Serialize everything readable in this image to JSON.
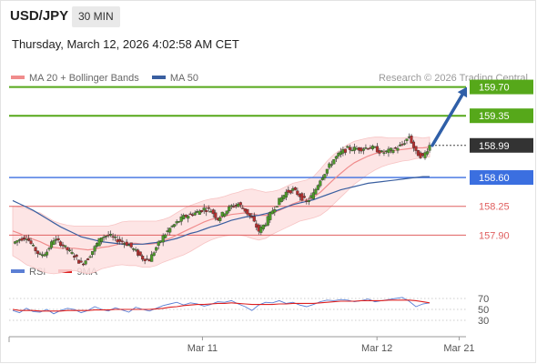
{
  "header": {
    "symbol": "USD/JPY",
    "timeframe": "30 MIN",
    "timestamp": "Thursday, March 12, 2026 4:02:58 AM CET"
  },
  "legend": {
    "ma20_label": "MA 20 + Bollinger Bands",
    "ma50_label": "MA 50",
    "credit": "Research © 2026 Trading Central",
    "ma20_color": "#f08c8c",
    "ma50_color": "#3a5fa0"
  },
  "rsi_legend": {
    "rsi_label": "RSI",
    "ma_label": "9MA",
    "rsi_color": "#5b7fd4",
    "ma_color": "#dd2020"
  },
  "chart_data": {
    "type": "candlestick",
    "price_range": [
      157.55,
      159.85
    ],
    "levels": [
      {
        "value": 159.7,
        "label": "159.70",
        "kind": "resistance",
        "color": "#56a81a"
      },
      {
        "value": 159.35,
        "label": "159.35",
        "kind": "resistance",
        "color": "#56a81a"
      },
      {
        "value": 158.99,
        "label": "158.99",
        "kind": "last",
        "color": "#333333"
      },
      {
        "value": 158.6,
        "label": "158.60",
        "kind": "pivot",
        "color": "#3b6fe0"
      },
      {
        "value": 158.25,
        "label": "158.25",
        "kind": "support",
        "color": "#e06060"
      },
      {
        "value": 157.9,
        "label": "157.90",
        "kind": "support",
        "color": "#e06060"
      }
    ],
    "arrow": {
      "from": 158.99,
      "to": 159.7,
      "color": "#2f5fa8"
    },
    "price_path": [
      157.8,
      157.85,
      157.88,
      157.75,
      157.65,
      157.7,
      157.85,
      157.8,
      157.72,
      157.65,
      157.55,
      157.62,
      157.75,
      157.88,
      157.9,
      157.85,
      157.82,
      157.78,
      157.7,
      157.62,
      157.6,
      157.75,
      157.88,
      157.98,
      158.05,
      158.12,
      158.15,
      158.18,
      158.22,
      158.2,
      158.1,
      158.18,
      158.25,
      158.28,
      158.2,
      158.1,
      157.95,
      158.05,
      158.2,
      158.32,
      158.42,
      158.45,
      158.38,
      158.3,
      158.4,
      158.58,
      158.7,
      158.82,
      158.9,
      158.95,
      158.95,
      158.95,
      158.97,
      158.95,
      158.9,
      158.92,
      158.95,
      159.0,
      159.1,
      158.9,
      158.85,
      158.99
    ],
    "ma20": [
      157.95,
      157.92,
      157.88,
      157.85,
      157.82,
      157.78,
      157.75,
      157.74,
      157.74,
      157.74,
      157.73,
      157.72,
      157.73,
      157.75,
      157.76,
      157.78,
      157.8,
      157.8,
      157.8,
      157.79,
      157.79,
      157.8,
      157.83,
      157.86,
      157.9,
      157.94,
      157.98,
      158.02,
      158.06,
      158.09,
      158.11,
      158.13,
      158.15,
      158.16,
      158.17,
      158.16,
      158.14,
      158.14,
      158.17,
      158.2,
      158.24,
      158.28,
      158.31,
      158.33,
      158.36,
      158.42,
      158.5,
      158.58,
      158.65,
      158.72,
      158.78,
      158.82,
      158.86,
      158.89,
      158.91,
      158.92,
      158.93,
      158.94,
      158.95,
      158.96,
      158.96,
      158.97
    ],
    "ma50": [
      158.32,
      158.28,
      158.24,
      158.2,
      158.15,
      158.1,
      158.05,
      158.0,
      157.96,
      157.92,
      157.88,
      157.86,
      157.84,
      157.82,
      157.81,
      157.8,
      157.79,
      157.79,
      157.79,
      157.79,
      157.8,
      157.81,
      157.82,
      157.84,
      157.86,
      157.89,
      157.92,
      157.94,
      157.97,
      158.0,
      158.02,
      158.05,
      158.08,
      158.1,
      158.12,
      158.13,
      158.14,
      158.16,
      158.18,
      158.21,
      158.24,
      158.27,
      158.29,
      158.31,
      158.33,
      158.36,
      158.39,
      158.42,
      158.45,
      158.47,
      158.49,
      158.51,
      158.53,
      158.54,
      158.55,
      158.56,
      158.57,
      158.58,
      158.59,
      158.6,
      158.61,
      158.61
    ],
    "bb_width": [
      0.3,
      0.32,
      0.34,
      0.34,
      0.35,
      0.34,
      0.32,
      0.3,
      0.28,
      0.27,
      0.28,
      0.29,
      0.28,
      0.26,
      0.25,
      0.25,
      0.26,
      0.27,
      0.27,
      0.28,
      0.28,
      0.27,
      0.26,
      0.26,
      0.27,
      0.28,
      0.28,
      0.27,
      0.26,
      0.25,
      0.24,
      0.24,
      0.25,
      0.26,
      0.28,
      0.3,
      0.3,
      0.28,
      0.26,
      0.25,
      0.25,
      0.25,
      0.24,
      0.24,
      0.25,
      0.28,
      0.3,
      0.3,
      0.29,
      0.28,
      0.26,
      0.24,
      0.22,
      0.2,
      0.18,
      0.16,
      0.15,
      0.14,
      0.14,
      0.13,
      0.12,
      0.12
    ],
    "rsi": {
      "ticks": [
        {
          "value": 70,
          "label": "70"
        },
        {
          "value": 50,
          "label": "50"
        },
        {
          "value": 30,
          "label": "30"
        }
      ],
      "rsi": [
        48,
        44,
        52,
        46,
        45,
        50,
        42,
        48,
        52,
        50,
        44,
        48,
        55,
        50,
        47,
        53,
        49,
        45,
        54,
        50,
        47,
        52,
        57,
        60,
        63,
        58,
        62,
        60,
        56,
        59,
        64,
        63,
        66,
        60,
        55,
        48,
        58,
        63,
        62,
        66,
        61,
        63,
        58,
        55,
        59,
        64,
        67,
        66,
        68,
        67,
        64,
        66,
        69,
        64,
        66,
        68,
        70,
        72,
        65,
        55,
        60,
        62
      ],
      "ma9": [
        50,
        48,
        48,
        48,
        47,
        47,
        47,
        47,
        48,
        48,
        48,
        48,
        49,
        49,
        49,
        50,
        50,
        50,
        50,
        50,
        50,
        51,
        52,
        54,
        55,
        57,
        58,
        59,
        59,
        60,
        61,
        61,
        62,
        61,
        60,
        59,
        59,
        59,
        59,
        60,
        60,
        61,
        61,
        61,
        61,
        62,
        63,
        64,
        65,
        65,
        65,
        66,
        66,
        66,
        66,
        67,
        67,
        67,
        67,
        66,
        64,
        62
      ]
    },
    "x_labels": [
      {
        "label": "Mar 11",
        "pos": 0.377
      },
      {
        "label": "Mar 12",
        "pos": 0.702
      },
      {
        "label": "Mar 21",
        "pos": 0.855
      }
    ]
  }
}
